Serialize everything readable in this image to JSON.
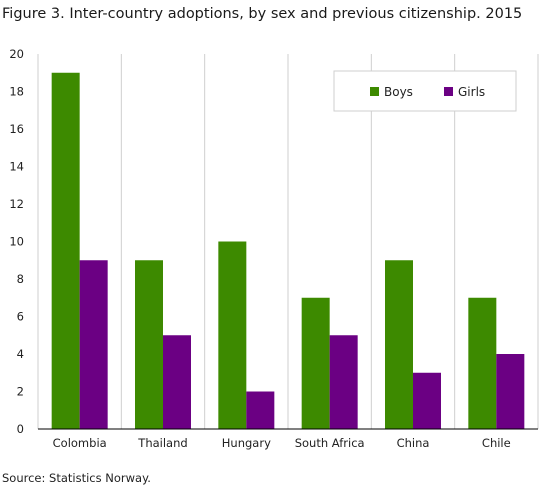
{
  "figure": {
    "title": "Figure 3. Inter-country adoptions, by sex and previous citizenship. 2015",
    "source": "Source: Statistics Norway."
  },
  "chart_data": {
    "type": "bar",
    "title": "Figure 3. Inter-country adoptions, by sex and previous citizenship. 2015",
    "xlabel": "",
    "ylabel": "",
    "categories": [
      "Colombia",
      "Thailand",
      "Hungary",
      "South Africa",
      "China",
      "Chile"
    ],
    "series": [
      {
        "name": "Boys",
        "color": "#3d8a00",
        "values": [
          19,
          9,
          10,
          7,
          9,
          7
        ]
      },
      {
        "name": "Girls",
        "color": "#6b0083",
        "values": [
          9,
          5,
          2,
          5,
          3,
          4
        ]
      }
    ],
    "ylim": [
      0,
      20
    ],
    "yticks": [
      0,
      2,
      4,
      6,
      8,
      10,
      12,
      14,
      16,
      18,
      20
    ],
    "grid": "vertical separators between categories",
    "legend": {
      "placement": "top-right"
    }
  }
}
